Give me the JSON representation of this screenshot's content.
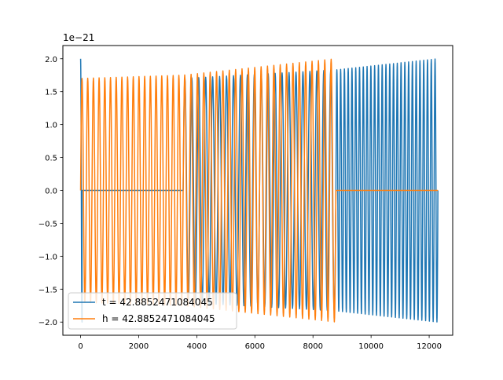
{
  "chart_data": {
    "type": "line",
    "title": "",
    "xlabel": "",
    "ylabel": "",
    "offset_text": "1e−21",
    "xlim": [
      -610,
      12810
    ],
    "ylim": [
      -2.2,
      2.2
    ],
    "grid": false,
    "legend": "lower-left",
    "x_ticks": [
      0,
      2000,
      4000,
      6000,
      8000,
      10000,
      12000
    ],
    "y_ticks": [
      {
        "value": 2.0,
        "label": "2.0"
      },
      {
        "value": 1.5,
        "label": "1.5"
      },
      {
        "value": 1.0,
        "label": "1.0"
      },
      {
        "value": 0.5,
        "label": "0.5"
      },
      {
        "value": 0.0,
        "label": "0.0"
      },
      {
        "value": -0.5,
        "label": "−0.5"
      },
      {
        "value": -1.0,
        "label": "−1.0"
      },
      {
        "value": -1.5,
        "label": "−1.5"
      },
      {
        "value": -2.0,
        "label": "−2.0"
      }
    ],
    "series": [
      {
        "name": "t = 42.8852471084045",
        "color": "#1f77b4",
        "segments": [
          {
            "x_start": 0,
            "x_end": 50,
            "amp_start": 2.0,
            "amp_end": 2.0,
            "cycles": 0.5,
            "phase": 0.25
          },
          {
            "x_start": 50,
            "x_end": 3530,
            "amp_start": 0,
            "amp_end": 0,
            "cycles": 0,
            "phase": 0
          },
          {
            "x_start": 3530,
            "x_end": 8790,
            "amp_start": 1.7,
            "amp_end": 1.83,
            "cycles": 22,
            "phase": 0
          },
          {
            "x_start": 8790,
            "x_end": 12300,
            "amp_start": 1.83,
            "amp_end": 2.0,
            "cycles": 27,
            "phase": 0
          }
        ]
      },
      {
        "name": "h = 42.8852471084045",
        "color": "#ff7f0e",
        "segments": [
          {
            "x_start": 0,
            "x_end": 3530,
            "amp_start": 1.7,
            "amp_end": 1.75,
            "cycles": 18,
            "phase": 0
          },
          {
            "x_start": 3530,
            "x_end": 8790,
            "amp_start": 1.75,
            "amp_end": 2.0,
            "cycles": 24,
            "phase": 0
          },
          {
            "x_start": 8790,
            "x_end": 12300,
            "amp_start": 0,
            "amp_end": 0,
            "cycles": 0,
            "phase": 0
          }
        ]
      }
    ]
  }
}
